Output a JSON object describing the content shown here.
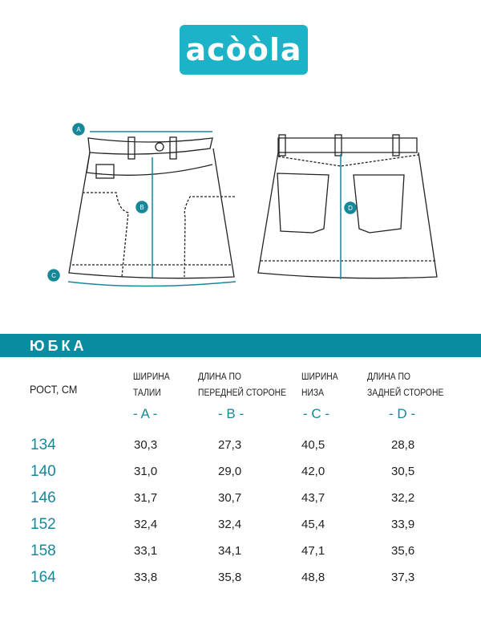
{
  "logo": {
    "text": "acòòla",
    "color": "#1cb3c8"
  },
  "diagram": {
    "markers": [
      "A",
      "B",
      "C",
      "D"
    ],
    "accent": "#17879a"
  },
  "section": {
    "title": "ЮБКА",
    "color": "#0a8ca0"
  },
  "table": {
    "row_header": "РОСТ, СМ",
    "columns": [
      {
        "line1": "ШИРИНА",
        "line2": "ТАЛИИ",
        "letter": "- A -"
      },
      {
        "line1": "ДЛИНА ПО",
        "line2": "ПЕРЕДНЕЙ СТОРОНЕ",
        "letter": "- B -"
      },
      {
        "line1": "ШИРИНА",
        "line2": "НИЗА",
        "letter": "- C -"
      },
      {
        "line1": "ДЛИНА ПО",
        "line2": "ЗАДНЕЙ СТОРОНЕ",
        "letter": "- D -"
      }
    ],
    "rows": [
      {
        "size": "134",
        "values": [
          "30,3",
          "27,3",
          "40,5",
          "28,8"
        ]
      },
      {
        "size": "140",
        "values": [
          "31,0",
          "29,0",
          "42,0",
          "30,5"
        ]
      },
      {
        "size": "146",
        "values": [
          "31,7",
          "30,7",
          "43,7",
          "32,2"
        ]
      },
      {
        "size": "152",
        "values": [
          "32,4",
          "32,4",
          "45,4",
          "33,9"
        ]
      },
      {
        "size": "158",
        "values": [
          "33,1",
          "34,1",
          "47,1",
          "35,6"
        ]
      },
      {
        "size": "164",
        "values": [
          "33,8",
          "35,8",
          "48,8",
          "37,3"
        ]
      }
    ]
  }
}
